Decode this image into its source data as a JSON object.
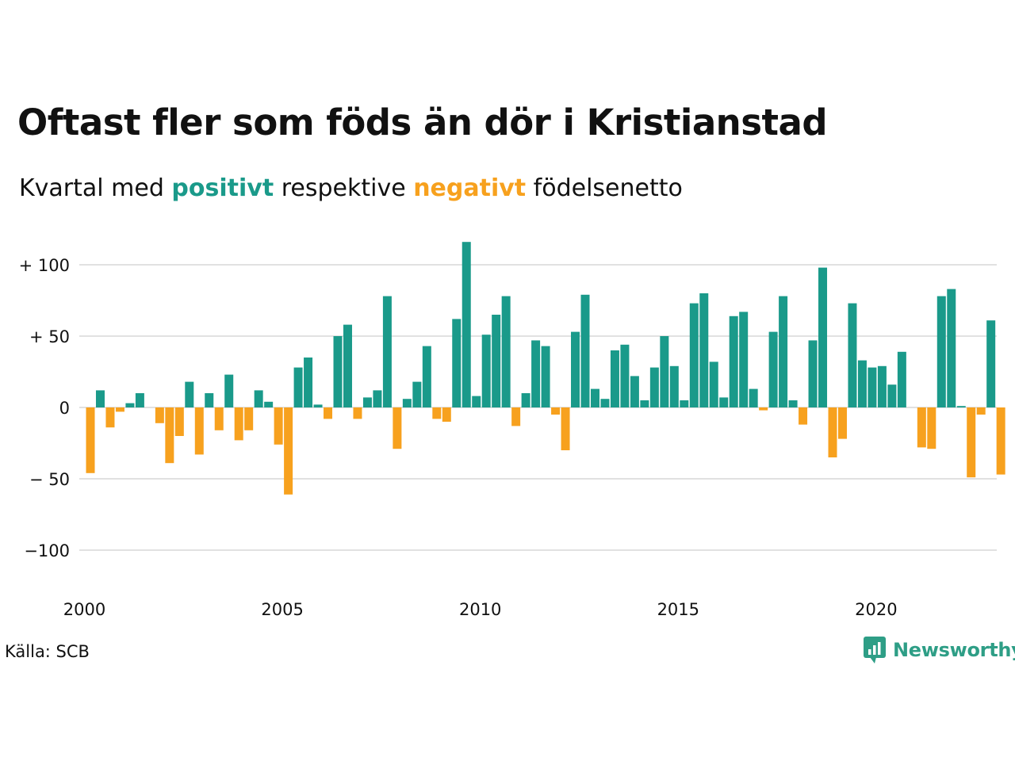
{
  "header": {
    "title": "Oftast fler som föds än dör i Kristianstad",
    "subtitle_prefix": "Kvartal med ",
    "subtitle_positive": "positivt",
    "subtitle_middle": " respektive ",
    "subtitle_negative": "negativt",
    "subtitle_suffix": " födelsenetto"
  },
  "footer": {
    "source": "Källa: SCB",
    "brand": "Newsworthy",
    "brand_icon": "newsworthy-logo-icon"
  },
  "colors": {
    "positive": "#1a9a8a",
    "negative": "#f7a11e",
    "grid": "#e1e1e1",
    "text": "#111111",
    "brand": "#2e9e86"
  },
  "chart_data": {
    "type": "bar",
    "title": "Oftast fler som föds än dör i Kristianstad",
    "subtitle": "Kvartal med positivt respektive negativt födelsenetto",
    "xlabel": "",
    "ylabel": "",
    "ylim": [
      -120,
      120
    ],
    "grid": true,
    "legend": "none",
    "y_ticks": [
      {
        "value": 100,
        "label": "+ 100"
      },
      {
        "value": 50,
        "label": "+  50"
      },
      {
        "value": 0,
        "label": "0"
      },
      {
        "value": -50,
        "label": "− 50"
      },
      {
        "value": -100,
        "label": "−100"
      }
    ],
    "x_ticks": [
      {
        "year": 2000,
        "label": "2000"
      },
      {
        "year": 2005,
        "label": "2005"
      },
      {
        "year": 2010,
        "label": "2010"
      },
      {
        "year": 2015,
        "label": "2015"
      },
      {
        "year": 2020,
        "label": "2020"
      }
    ],
    "start_year": 2000,
    "start_quarter": 1,
    "values": [
      -46,
      12,
      -14,
      -3,
      3,
      10,
      0,
      -11,
      -39,
      -20,
      18,
      -33,
      10,
      -16,
      23,
      -23,
      -16,
      12,
      4,
      -26,
      -61,
      28,
      35,
      2,
      -8,
      50,
      58,
      -8,
      7,
      12,
      78,
      -29,
      6,
      18,
      43,
      -8,
      -10,
      62,
      116,
      8,
      51,
      65,
      78,
      -13,
      10,
      47,
      43,
      -5,
      -30,
      53,
      79,
      13,
      6,
      40,
      44,
      22,
      5,
      28,
      50,
      29,
      5,
      73,
      80,
      32,
      7,
      64,
      67,
      13,
      -2,
      53,
      78,
      5,
      -12,
      47,
      98,
      -35,
      -22,
      73,
      33,
      28,
      29,
      16,
      39,
      0,
      -28,
      -29,
      78,
      83,
      1,
      -49,
      -5,
      61,
      -47
    ]
  }
}
